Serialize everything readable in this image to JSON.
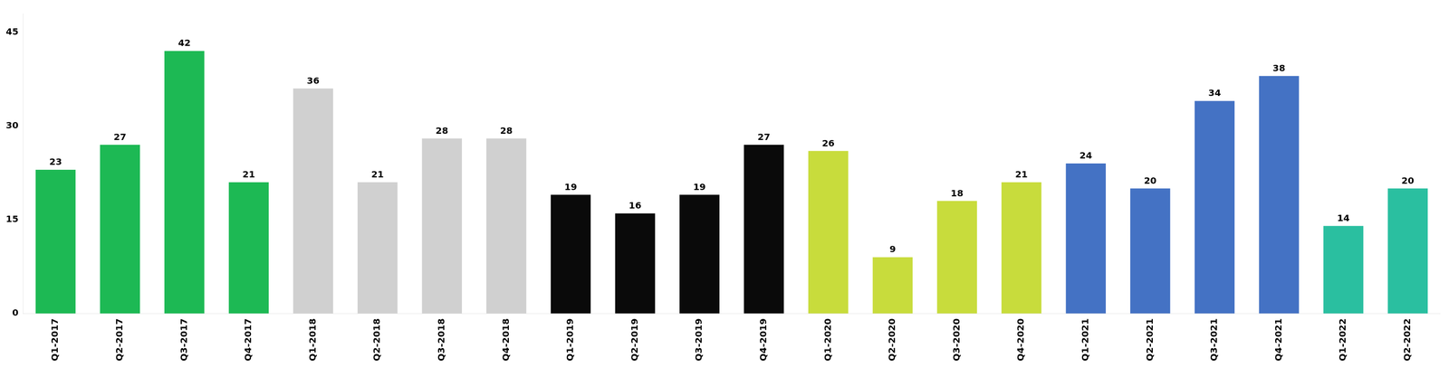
{
  "chart_data": {
    "type": "bar",
    "categories": [
      "Q1-2017",
      "Q2-2017",
      "Q3-2017",
      "Q4-2017",
      "Q1-2018",
      "Q2-2018",
      "Q3-2018",
      "Q4-2018",
      "Q1-2019",
      "Q2-2019",
      "Q3-2019",
      "Q4-2019",
      "Q1-2020",
      "Q2-2020",
      "Q3-2020",
      "Q4-2020",
      "Q1-2021",
      "Q2-2021",
      "Q3-2021",
      "Q4-2021",
      "Q1-2022",
      "Q2-2022"
    ],
    "values": [
      23,
      27,
      42,
      21,
      36,
      21,
      28,
      28,
      19,
      16,
      19,
      27,
      26,
      9,
      18,
      21,
      24,
      20,
      34,
      38,
      14,
      20
    ],
    "colors": [
      "#1db954",
      "#1db954",
      "#1db954",
      "#1db954",
      "#d0d0d0",
      "#d0d0d0",
      "#d0d0d0",
      "#d0d0d0",
      "#0a0a0a",
      "#0a0a0a",
      "#0a0a0a",
      "#0a0a0a",
      "#c8dc3c",
      "#c8dc3c",
      "#c8dc3c",
      "#c8dc3c",
      "#4472c4",
      "#4472c4",
      "#4472c4",
      "#4472c4",
      "#2abfa0",
      "#2abfa0"
    ],
    "ylim": [
      0,
      48
    ],
    "yticks": [
      0,
      15,
      30,
      45
    ],
    "grid": false,
    "data_labels": true
  }
}
